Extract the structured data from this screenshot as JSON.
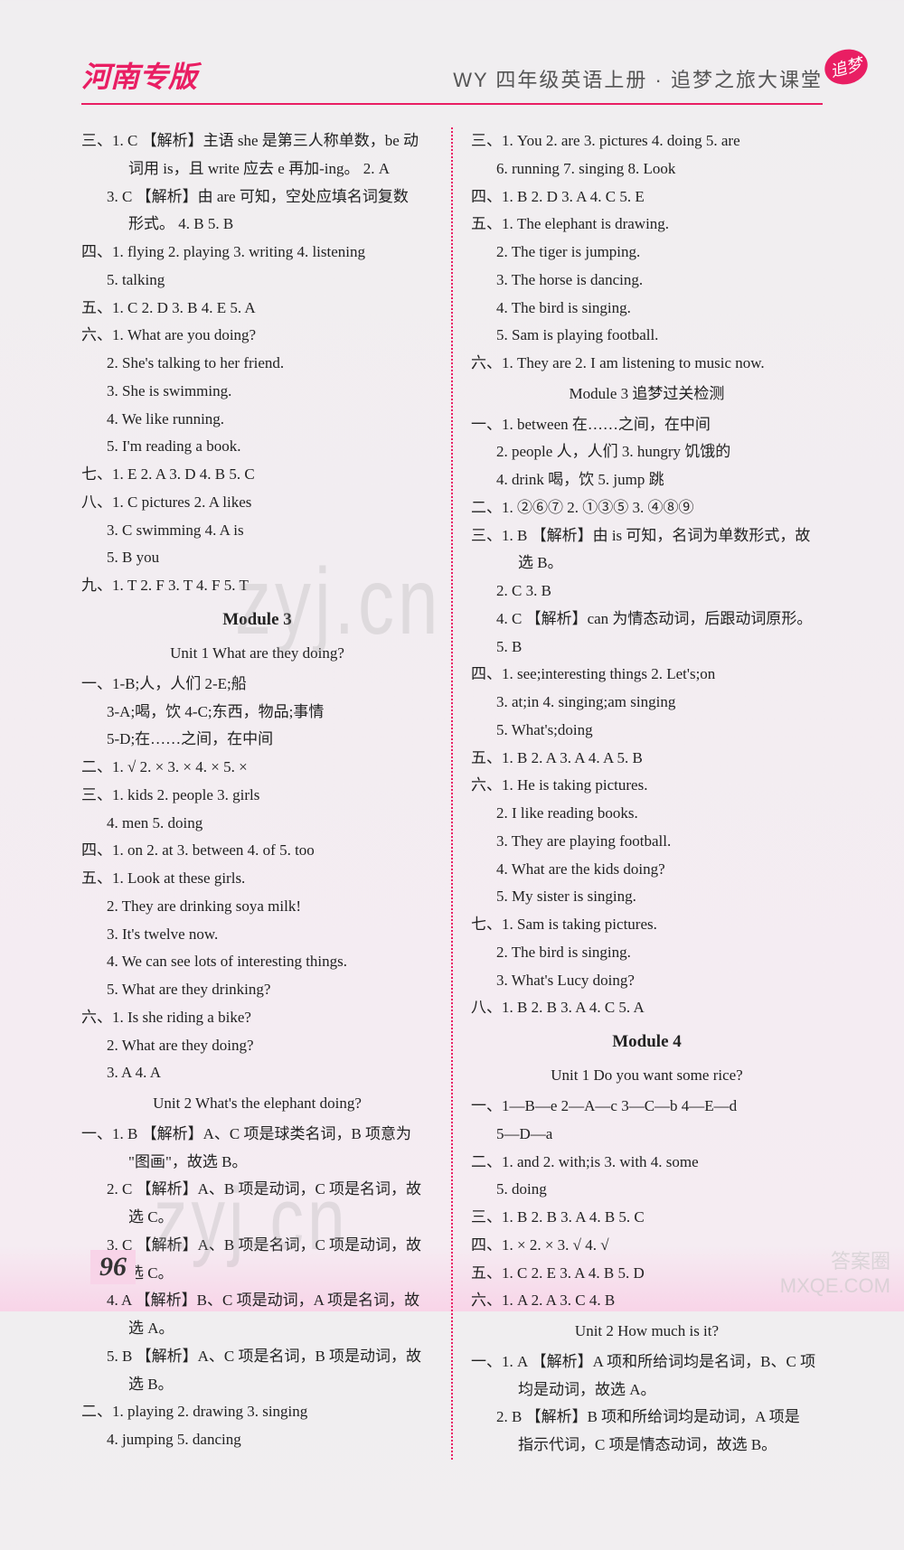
{
  "header": {
    "left": "河南专版",
    "center": "WY 四年级英语上册 · 追梦之旅大课堂",
    "stamp": "追梦"
  },
  "pageNumber": "96",
  "watermarks": {
    "center": "zyj.cn",
    "bottom": "zyj.cn"
  },
  "cornerBrand": "答案圈\nMXQE.COM",
  "leftColumn": [
    {
      "cls": "line",
      "text": "三、1. C  【解析】主语 she 是第三人称单数，be 动"
    },
    {
      "cls": "line indent2",
      "text": "词用 is，且 write 应去 e 再加-ing。   2. A"
    },
    {
      "cls": "line indent1",
      "text": "3. C  【解析】由 are 可知，空处应填名词复数"
    },
    {
      "cls": "line indent2",
      "text": "形式。   4. B   5. B"
    },
    {
      "cls": "line",
      "text": "四、1. flying   2. playing   3. writing   4. listening"
    },
    {
      "cls": "line indent1",
      "text": "5. talking"
    },
    {
      "cls": "line",
      "text": "五、1. C   2. D   3. B   4. E   5. A"
    },
    {
      "cls": "line",
      "text": "六、1. What are you doing?"
    },
    {
      "cls": "line indent1",
      "text": "2. She's talking to her friend."
    },
    {
      "cls": "line indent1",
      "text": "3. She is swimming."
    },
    {
      "cls": "line indent1",
      "text": "4. We like running."
    },
    {
      "cls": "line indent1",
      "text": "5. I'm reading a book."
    },
    {
      "cls": "line",
      "text": "七、1. E   2. A   3. D   4. B   5. C"
    },
    {
      "cls": "line",
      "text": "八、1. C   pictures   2. A   likes"
    },
    {
      "cls": "line indent1",
      "text": "3. C   swimming   4. A   is"
    },
    {
      "cls": "line indent1",
      "text": "5. B   you"
    },
    {
      "cls": "line",
      "text": "九、1. T   2. F   3. T   4. F   5. T"
    },
    {
      "cls": "module-title",
      "text": "Module 3"
    },
    {
      "cls": "unit-title",
      "text": "Unit 1   What are they doing?"
    },
    {
      "cls": "line",
      "text": "一、1-B;人，人们   2-E;船"
    },
    {
      "cls": "line indent1",
      "text": "3-A;喝，饮   4-C;东西，物品;事情"
    },
    {
      "cls": "line indent1",
      "text": "5-D;在……之间，在中间"
    },
    {
      "cls": "line",
      "text": "二、1. √   2. ×   3. ×   4. ×   5. ×"
    },
    {
      "cls": "line",
      "text": "三、1. kids   2. people   3. girls"
    },
    {
      "cls": "line indent1",
      "text": "4. men   5. doing"
    },
    {
      "cls": "line",
      "text": "四、1. on   2. at   3. between   4. of   5. too"
    },
    {
      "cls": "line",
      "text": "五、1. Look at these girls."
    },
    {
      "cls": "line indent1",
      "text": "2. They are drinking soya milk!"
    },
    {
      "cls": "line indent1",
      "text": "3. It's twelve now."
    },
    {
      "cls": "line indent1",
      "text": "4. We can see lots of interesting things."
    },
    {
      "cls": "line indent1",
      "text": "5. What are they drinking?"
    },
    {
      "cls": "line",
      "text": "六、1. Is she riding a bike?"
    },
    {
      "cls": "line indent1",
      "text": "2. What are they doing?"
    },
    {
      "cls": "line indent1",
      "text": "3. A   4. A"
    },
    {
      "cls": "unit-title",
      "text": "Unit 2   What's the elephant doing?"
    },
    {
      "cls": "line",
      "text": "一、1. B  【解析】A、C 项是球类名词，B 项意为"
    },
    {
      "cls": "line indent2",
      "text": "\"图画\"，故选 B。"
    },
    {
      "cls": "line indent1",
      "text": "2. C  【解析】A、B 项是动词，C 项是名词，故"
    },
    {
      "cls": "line indent2",
      "text": "选 C。"
    },
    {
      "cls": "line indent1",
      "text": "3. C  【解析】A、B 项是名词，C 项是动词，故"
    },
    {
      "cls": "line indent2",
      "text": "选 C。"
    },
    {
      "cls": "line indent1",
      "text": "4. A  【解析】B、C 项是动词，A 项是名词，故"
    },
    {
      "cls": "line indent2",
      "text": "选 A。"
    },
    {
      "cls": "line indent1",
      "text": "5. B  【解析】A、C 项是名词，B 项是动词，故"
    },
    {
      "cls": "line indent2",
      "text": "选 B。"
    },
    {
      "cls": "line",
      "text": "二、1. playing   2. drawing   3. singing"
    },
    {
      "cls": "line indent1",
      "text": "4. jumping   5. dancing"
    }
  ],
  "rightColumn": [
    {
      "cls": "line",
      "text": "三、1. You   2. are   3. pictures   4. doing   5. are"
    },
    {
      "cls": "line indent1",
      "text": "6. running   7. singing   8. Look"
    },
    {
      "cls": "line",
      "text": "四、1. B   2. D   3. A   4. C   5. E"
    },
    {
      "cls": "line",
      "text": "五、1. The elephant is drawing."
    },
    {
      "cls": "line indent1",
      "text": "2. The tiger is jumping."
    },
    {
      "cls": "line indent1",
      "text": "3. The horse is dancing."
    },
    {
      "cls": "line indent1",
      "text": "4. The bird is singing."
    },
    {
      "cls": "line indent1",
      "text": "5. Sam is playing football."
    },
    {
      "cls": "line",
      "text": "六、1. They are   2. I am listening to music now."
    },
    {
      "cls": "unit-title",
      "text": "Module 3 追梦过关检测"
    },
    {
      "cls": "line",
      "text": "一、1. between 在……之间，在中间"
    },
    {
      "cls": "line indent1",
      "text": "2. people 人，人们   3. hungry 饥饿的"
    },
    {
      "cls": "line indent1",
      "text": "4. drink 喝，饮   5. jump 跳"
    },
    {
      "cls": "line",
      "text": "二、1. ②⑥⑦   2. ①③⑤   3. ④⑧⑨"
    },
    {
      "cls": "line",
      "text": "三、1. B  【解析】由 is 可知，名词为单数形式，故"
    },
    {
      "cls": "line indent2",
      "text": "选 B。"
    },
    {
      "cls": "line indent1",
      "text": "2. C   3. B"
    },
    {
      "cls": "line indent1",
      "text": "4. C  【解析】can 为情态动词，后跟动词原形。"
    },
    {
      "cls": "line indent1",
      "text": "5. B"
    },
    {
      "cls": "line",
      "text": "四、1. see;interesting things   2. Let's;on"
    },
    {
      "cls": "line indent1",
      "text": "3. at;in   4. singing;am singing"
    },
    {
      "cls": "line indent1",
      "text": "5. What's;doing"
    },
    {
      "cls": "line",
      "text": "五、1. B   2. A   3. A   4. A   5. B"
    },
    {
      "cls": "line",
      "text": "六、1. He is taking pictures."
    },
    {
      "cls": "line indent1",
      "text": "2. I like reading books."
    },
    {
      "cls": "line indent1",
      "text": "3. They are playing football."
    },
    {
      "cls": "line indent1",
      "text": "4. What are the kids doing?"
    },
    {
      "cls": "line indent1",
      "text": "5. My sister is singing."
    },
    {
      "cls": "line",
      "text": "七、1. Sam is taking pictures."
    },
    {
      "cls": "line indent1",
      "text": "2. The bird is singing."
    },
    {
      "cls": "line indent1",
      "text": "3. What's Lucy doing?"
    },
    {
      "cls": "line",
      "text": "八、1. B   2. B   3. A   4. C   5. A"
    },
    {
      "cls": "module-title",
      "text": "Module 4"
    },
    {
      "cls": "unit-title",
      "text": "Unit 1   Do you want some rice?"
    },
    {
      "cls": "line",
      "text": "一、1—B—e    2—A—c    3—C—b    4—E—d"
    },
    {
      "cls": "line indent1",
      "text": "5—D—a"
    },
    {
      "cls": "line",
      "text": "二、1. and   2. with;is   3. with   4. some"
    },
    {
      "cls": "line indent1",
      "text": "5. doing"
    },
    {
      "cls": "line",
      "text": "三、1. B   2. B   3. A   4. B   5. C"
    },
    {
      "cls": "line",
      "text": "四、1. ×   2. ×   3. √   4. √"
    },
    {
      "cls": "line",
      "text": "五、1. C   2. E   3. A   4. B   5. D"
    },
    {
      "cls": "line",
      "text": "六、1. A   2. A   3. C   4. B"
    },
    {
      "cls": "unit-title",
      "text": "Unit 2   How much is it?"
    },
    {
      "cls": "line",
      "text": "一、1. A  【解析】A 项和所给词均是名词，B、C 项"
    },
    {
      "cls": "line indent2",
      "text": "均是动词，故选 A。"
    },
    {
      "cls": "line indent1",
      "text": "2. B  【解析】B 项和所给词均是动词，A 项是"
    },
    {
      "cls": "line indent2",
      "text": "指示代词，C 项是情态动词，故选 B。"
    }
  ]
}
